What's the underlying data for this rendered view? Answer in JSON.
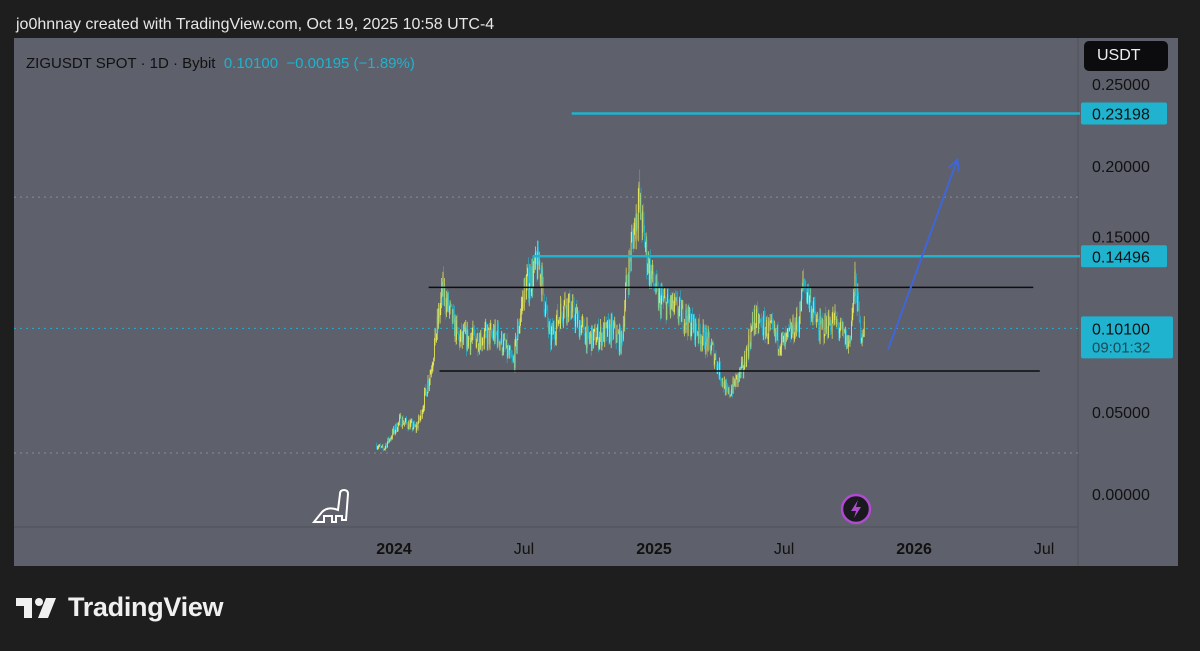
{
  "credit": "jo0hnnay created with TradingView.com, Oct 19, 2025 10:58 UTC-4",
  "legend": {
    "symbol": "ZIGUSDT SPOT · 1D · Bybit",
    "price": "0.10100",
    "change": "−0.00195 (−1.89%)"
  },
  "currency_button": "USDT",
  "brand": "TradingView",
  "colors": {
    "bg": "#5e606b",
    "up": "#e8e85a",
    "down": "#1fb3cf",
    "accent": "#1fb3cf",
    "arrow": "#3f66d8"
  },
  "chart_data": {
    "type": "candlestick",
    "title": "ZIGUSDT SPOT · 1D · Bybit",
    "x_unit": "months since Jan 2024",
    "ylim": [
      0,
      0.25
    ],
    "yticks": [
      {
        "v": 0.25,
        "label": "0.25000"
      },
      {
        "v": 0.2,
        "label": "0.20000"
      },
      {
        "v": 0.15,
        "label": "0.15000"
      },
      {
        "v": 0.05,
        "label": "0.05000"
      },
      {
        "v": 0,
        "label": "0.00000"
      }
    ],
    "xticks": [
      {
        "m": 0,
        "label": "2024",
        "bold": true
      },
      {
        "m": 6,
        "label": "Jul",
        "bold": false
      },
      {
        "m": 12,
        "label": "2025",
        "bold": true
      },
      {
        "m": 18,
        "label": "Jul",
        "bold": false
      },
      {
        "m": 24,
        "label": "2026",
        "bold": true
      },
      {
        "m": 30,
        "label": "Jul",
        "bold": false
      }
    ],
    "price_path": [
      [
        -0.8,
        0.03
      ],
      [
        -0.5,
        0.027
      ],
      [
        0.3,
        0.045
      ],
      [
        1.0,
        0.04
      ],
      [
        1.2,
        0.046
      ],
      [
        1.7,
        0.076
      ],
      [
        2.25,
        0.124
      ],
      [
        3.0,
        0.094
      ],
      [
        4.8,
        0.097
      ],
      [
        5.5,
        0.079
      ],
      [
        6.0,
        0.124
      ],
      [
        6.7,
        0.141
      ],
      [
        7.2,
        0.094
      ],
      [
        7.9,
        0.118
      ],
      [
        9.0,
        0.094
      ],
      [
        10.1,
        0.1
      ],
      [
        10.5,
        0.092
      ],
      [
        10.7,
        0.124
      ],
      [
        11.0,
        0.155
      ],
      [
        11.3,
        0.179
      ],
      [
        11.7,
        0.142
      ],
      [
        12.2,
        0.118
      ],
      [
        13.1,
        0.112
      ],
      [
        14.0,
        0.1
      ],
      [
        14.7,
        0.088
      ],
      [
        15.4,
        0.06
      ],
      [
        16.1,
        0.076
      ],
      [
        16.6,
        0.106
      ],
      [
        17.3,
        0.1
      ],
      [
        18.0,
        0.091
      ],
      [
        18.7,
        0.106
      ],
      [
        18.9,
        0.13
      ],
      [
        19.6,
        0.1
      ],
      [
        20.3,
        0.106
      ],
      [
        21.0,
        0.091
      ],
      [
        21.3,
        0.13
      ],
      [
        21.5,
        0.1
      ],
      [
        21.7,
        0.101
      ]
    ],
    "last_price": {
      "value": 0.101,
      "label": "0.10100",
      "countdown": "09:01:32"
    },
    "high_marker": 0.181,
    "low_marker": 0.025,
    "drawings": {
      "resistance_lines": [
        {
          "price": 0.23198,
          "label": "0.23198",
          "from_m": 8.2
        },
        {
          "price": 0.14496,
          "label": "0.14496",
          "from_m": 6.4
        }
      ],
      "range_lines": [
        {
          "price": 0.126,
          "from_m": 1.6,
          "to_m": 29.5
        },
        {
          "price": 0.075,
          "from_m": 2.1,
          "to_m": 29.8
        }
      ],
      "arrow": {
        "from": [
          22.8,
          0.088
        ],
        "to": [
          26.0,
          0.204
        ]
      }
    }
  }
}
